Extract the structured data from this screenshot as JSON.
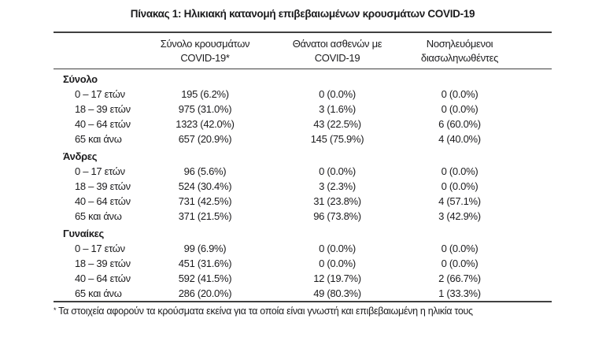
{
  "page": {
    "title": "Πίνακας 1: Ηλικιακή κατανομή επιβεβαιωμένων κρουσμάτων COVID-19"
  },
  "table": {
    "columns": [
      {
        "line1": "Σύνολο κρουσμάτων",
        "line2": "COVID-19*"
      },
      {
        "line1": "Θάνατοι ασθενών με",
        "line2": "COVID-19"
      },
      {
        "line1": "Νοσηλευόμενοι",
        "line2": "διασωληνωθέντες"
      }
    ],
    "sections": [
      {
        "label": "Σύνολο",
        "rows": [
          {
            "age": "0 – 17 ετών",
            "cases": "195 (6.2%)",
            "deaths": "0 (0.0%)",
            "intubated": "0 (0.0%)"
          },
          {
            "age": "18 – 39 ετών",
            "cases": "975 (31.0%)",
            "deaths": "3 (1.6%)",
            "intubated": "0 (0.0%)"
          },
          {
            "age": "40 – 64 ετών",
            "cases": "1323 (42.0%)",
            "deaths": "43 (22.5%)",
            "intubated": "6 (60.0%)"
          },
          {
            "age": "65 και άνω",
            "cases": "657 (20.9%)",
            "deaths": "145 (75.9%)",
            "intubated": "4 (40.0%)"
          }
        ]
      },
      {
        "label": "Άνδρες",
        "rows": [
          {
            "age": "0 – 17 ετών",
            "cases": "96 (5.6%)",
            "deaths": "0 (0.0%)",
            "intubated": "0 (0.0%)"
          },
          {
            "age": "18 – 39 ετών",
            "cases": "524 (30.4%)",
            "deaths": "3 (2.3%)",
            "intubated": "0 (0.0%)"
          },
          {
            "age": "40 – 64 ετών",
            "cases": "731 (42.5%)",
            "deaths": "31 (23.8%)",
            "intubated": "4 (57.1%)"
          },
          {
            "age": "65 και άνω",
            "cases": "371 (21.5%)",
            "deaths": "96 (73.8%)",
            "intubated": "3 (42.9%)"
          }
        ]
      },
      {
        "label": "Γυναίκες",
        "rows": [
          {
            "age": "0 – 17 ετών",
            "cases": "99 (6.9%)",
            "deaths": "0 (0.0%)",
            "intubated": "0 (0.0%)"
          },
          {
            "age": "18 – 39 ετών",
            "cases": "451 (31.6%)",
            "deaths": "0 (0.0%)",
            "intubated": "0 (0.0%)"
          },
          {
            "age": "40 – 64 ετών",
            "cases": "592 (41.5%)",
            "deaths": "12 (19.7%)",
            "intubated": "2 (66.7%)"
          },
          {
            "age": "65 και άνω",
            "cases": "286 (20.0%)",
            "deaths": "49 (80.3%)",
            "intubated": "1 (33.3%)"
          }
        ]
      }
    ],
    "footnote": {
      "marker": "*",
      "text": "Τα στοιχεία αφορούν τα κρούσματα εκείνα για τα οποία είναι γνωστή και επιβεβαιωμένη η ηλικία τους"
    }
  }
}
